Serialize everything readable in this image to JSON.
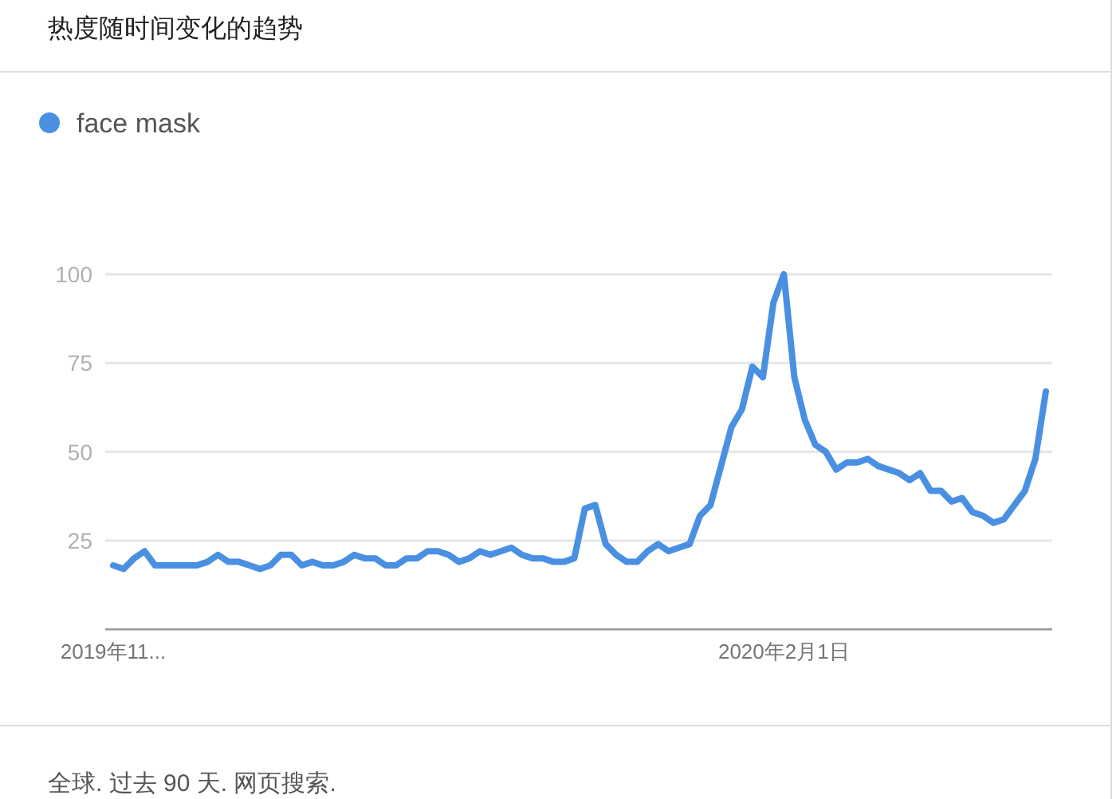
{
  "chart_data": {
    "type": "line",
    "title": "热度随时间变化的趋势",
    "categories": [
      "2019年11...",
      null,
      null,
      null,
      null,
      null,
      null,
      null,
      null,
      null,
      null,
      null,
      null,
      null,
      null,
      null,
      null,
      null,
      null,
      null,
      null,
      null,
      null,
      null,
      null,
      null,
      null,
      null,
      null,
      null,
      null,
      null,
      null,
      null,
      null,
      null,
      null,
      null,
      null,
      null,
      null,
      null,
      null,
      null,
      null,
      null,
      null,
      null,
      null,
      null,
      null,
      null,
      null,
      null,
      null,
      null,
      null,
      null,
      null,
      null,
      null,
      null,
      null,
      null,
      "2020年2月1日",
      null,
      null,
      null,
      null,
      null,
      null,
      null,
      null,
      null,
      null,
      null,
      null,
      null,
      null,
      null,
      null,
      null,
      null,
      null,
      null,
      null,
      null,
      null,
      null,
      null
    ],
    "series": [
      {
        "name": "face mask",
        "color": "#4a90e2",
        "values": [
          18,
          17,
          20,
          22,
          18,
          18,
          18,
          18,
          18,
          19,
          21,
          19,
          19,
          18,
          17,
          18,
          21,
          21,
          18,
          19,
          18,
          18,
          19,
          21,
          20,
          20,
          18,
          18,
          20,
          20,
          22,
          22,
          21,
          19,
          20,
          22,
          21,
          22,
          23,
          21,
          20,
          20,
          19,
          19,
          20,
          34,
          35,
          24,
          21,
          19,
          19,
          22,
          24,
          22,
          23,
          24,
          32,
          35,
          46,
          57,
          62,
          74,
          71,
          92,
          100,
          71,
          59,
          52,
          50,
          45,
          47,
          47,
          48,
          46,
          45,
          44,
          42,
          44,
          39,
          39,
          36,
          37,
          33,
          32,
          30,
          31,
          35,
          39,
          48,
          67
        ]
      }
    ],
    "ylim": [
      0,
      100
    ],
    "yticks": [
      25,
      50,
      75,
      100
    ],
    "grid": "y",
    "legend": "top left",
    "annotations": [
      "全球. 过去 90 天. 网页搜索."
    ]
  }
}
